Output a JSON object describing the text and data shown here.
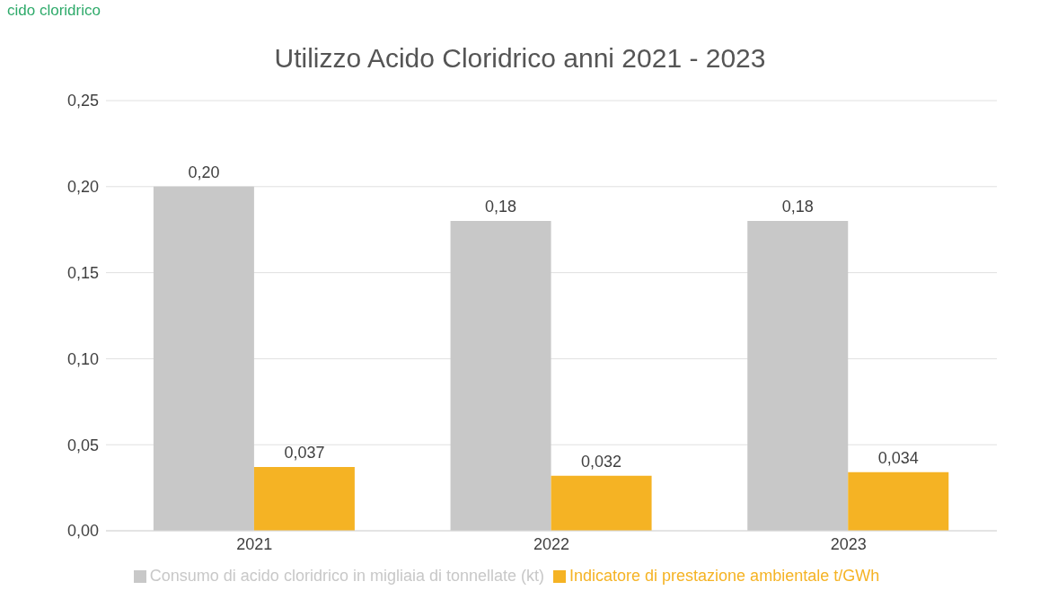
{
  "chart_data": {
    "type": "bar",
    "title": "Utilizzo Acido Cloridrico anni 2021 - 2023",
    "annotations": [
      "cido cloridrico"
    ],
    "categories": [
      "2021",
      "2022",
      "2023"
    ],
    "series": [
      {
        "name": "Consumo di acido cloridrico in migliaia di tonnellate (kt)",
        "color": "#c8c8c8",
        "values": [
          0.2,
          0.18,
          0.18
        ],
        "value_labels": [
          "0,20",
          "0,18",
          "0,18"
        ]
      },
      {
        "name": "Indicatore di prestazione ambientale t/GWh",
        "color": "#f5b324",
        "values": [
          0.037,
          0.032,
          0.034
        ],
        "value_labels": [
          "0,037",
          "0,032",
          "0,034"
        ]
      }
    ],
    "ylim": [
      0,
      0.25
    ],
    "yticks": [
      {
        "value": 0,
        "label": "0,00"
      },
      {
        "value": 0.05,
        "label": "0,05"
      },
      {
        "value": 0.1,
        "label": "0,10"
      },
      {
        "value": 0.15,
        "label": "0,15"
      },
      {
        "value": 0.2,
        "label": "0,20"
      },
      {
        "value": 0.25,
        "label": "0,25"
      }
    ],
    "grid": "y",
    "legend": "bottom"
  }
}
